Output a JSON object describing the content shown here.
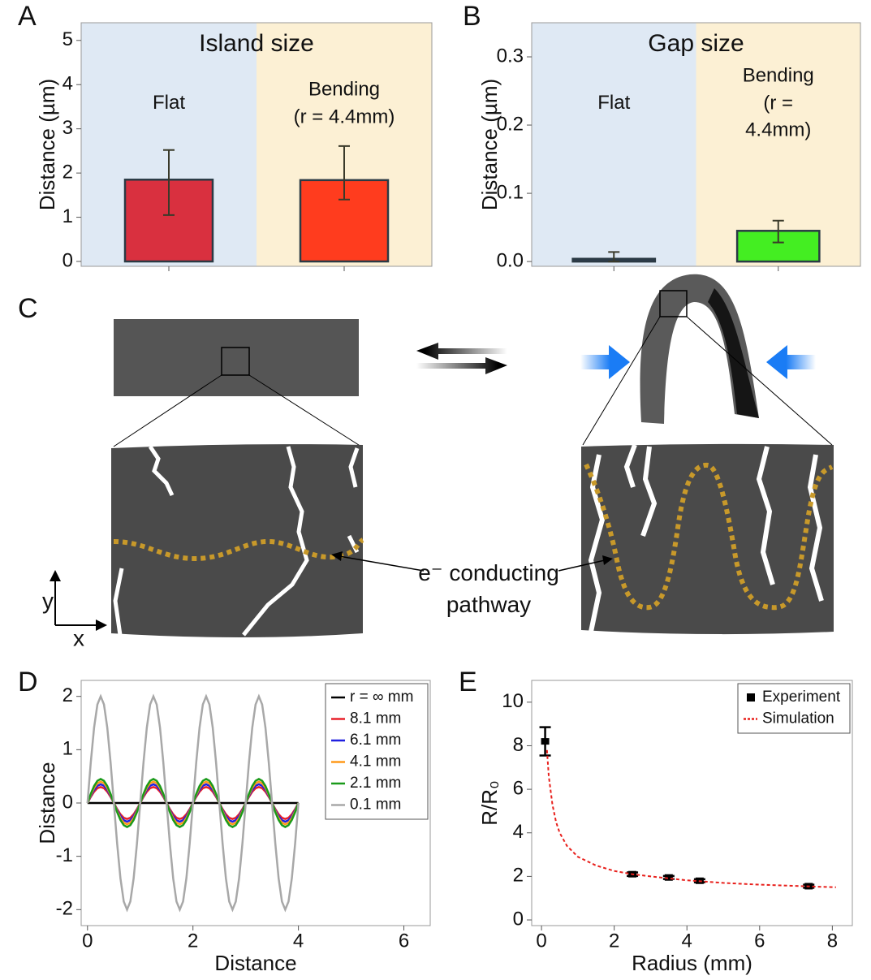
{
  "chart_data": [
    {
      "type": "bar",
      "panel_label": "A",
      "title": "Island size",
      "ylabel": "Distance (µm)",
      "categories": [
        "Flat",
        "Bending\n(r = 4.4mm)"
      ],
      "values": [
        1.85,
        1.84
      ],
      "error_minus": [
        0.8,
        0.44
      ],
      "error_plus": [
        0.67,
        0.77
      ],
      "colors": [
        "#d9303f",
        "#ff3c1e"
      ],
      "background_colors": [
        "#dfe9f4",
        "#fcf0d4"
      ],
      "ylim": [
        -0.11,
        5.4
      ],
      "yticks": [
        0,
        1,
        2,
        3,
        4,
        5
      ]
    },
    {
      "type": "bar",
      "panel_label": "B",
      "title": "Gap size",
      "ylabel": "Distance (µm)",
      "categories": [
        "Flat",
        "Bending\n(r = 4.4mm)"
      ],
      "values": [
        0.004,
        0.045
      ],
      "error_minus": [
        0.004,
        0.017
      ],
      "error_plus": [
        0.01,
        0.015
      ],
      "colors": [
        "#2e3c4c",
        "#44ee22"
      ],
      "background_colors": [
        "#dfe9f4",
        "#fcf0d4"
      ],
      "ylim": [
        -0.007,
        0.35
      ],
      "yticks": [
        {
          "value": 0,
          "label": "0.0"
        },
        0.1,
        0.2,
        0.3
      ]
    },
    {
      "type": "line",
      "panel_label": "D",
      "xlabel": "Distance",
      "ylabel": "Distance",
      "x": [
        0,
        0.0625,
        0.125,
        0.1875,
        0.25,
        0.3125,
        0.375,
        0.4375,
        0.5,
        0.5625,
        0.625,
        0.6875,
        0.75,
        0.8125,
        0.875,
        0.9375,
        1,
        1.0625,
        1.125,
        1.1875,
        1.25,
        1.3125,
        1.375,
        1.4375,
        1.5,
        1.5625,
        1.625,
        1.6875,
        1.75,
        1.8125,
        1.875,
        1.9375,
        2,
        2.0625,
        2.125,
        2.1875,
        2.25,
        2.3125,
        2.375,
        2.4375,
        2.5,
        2.5625,
        2.625,
        2.6875,
        2.75,
        2.8125,
        2.875,
        2.9375,
        3,
        3.0625,
        3.125,
        3.1875,
        3.25,
        3.3125,
        3.375,
        3.4375,
        3.5,
        3.5625,
        3.625,
        3.6875,
        3.75,
        3.8125,
        3.875,
        3.9375,
        4
      ],
      "series": [
        {
          "name": "r = ∞ mm",
          "color": "#000000",
          "values": [
            0,
            0,
            0,
            0,
            0,
            0,
            0,
            0,
            0,
            0,
            0,
            0,
            0,
            0,
            0,
            0,
            0,
            0,
            0,
            0,
            0,
            0,
            0,
            0,
            0,
            0,
            0,
            0,
            0,
            0,
            0,
            0,
            0,
            0,
            0,
            0,
            0,
            0,
            0,
            0,
            0,
            0,
            0,
            0,
            0,
            0,
            0,
            0,
            0,
            0,
            0,
            0,
            0,
            0,
            0,
            0,
            0,
            0,
            0,
            0,
            0,
            0,
            0,
            0,
            0
          ]
        },
        {
          "name": "8.1 mm",
          "color": "#e8202a",
          "values": [
            0,
            0.115,
            0.212,
            0.277,
            0.3,
            0.277,
            0.212,
            0.115,
            0,
            -0.115,
            -0.212,
            -0.277,
            -0.3,
            -0.277,
            -0.212,
            -0.115,
            0,
            0.115,
            0.212,
            0.277,
            0.3,
            0.277,
            0.212,
            0.115,
            0,
            -0.115,
            -0.212,
            -0.277,
            -0.3,
            -0.277,
            -0.212,
            -0.115,
            0,
            0.115,
            0.212,
            0.277,
            0.3,
            0.277,
            0.212,
            0.115,
            0,
            -0.115,
            -0.212,
            -0.277,
            -0.3,
            -0.277,
            -0.212,
            -0.115,
            0,
            0.115,
            0.212,
            0.277,
            0.3,
            0.277,
            0.212,
            0.115,
            0,
            -0.115,
            -0.212,
            -0.277,
            -0.3,
            -0.277,
            -0.212,
            -0.115,
            0
          ]
        },
        {
          "name": "6.1 mm",
          "color": "#2020e0",
          "values": [
            0,
            0.134,
            0.247,
            0.323,
            0.35,
            0.323,
            0.247,
            0.134,
            0,
            -0.134,
            -0.247,
            -0.323,
            -0.35,
            -0.323,
            -0.247,
            -0.134,
            0,
            0.134,
            0.247,
            0.323,
            0.35,
            0.323,
            0.247,
            0.134,
            0,
            -0.134,
            -0.247,
            -0.323,
            -0.35,
            -0.323,
            -0.247,
            -0.134,
            0,
            0.134,
            0.247,
            0.323,
            0.35,
            0.323,
            0.247,
            0.134,
            0,
            -0.134,
            -0.247,
            -0.323,
            -0.35,
            -0.323,
            -0.247,
            -0.134,
            0,
            0.134,
            0.247,
            0.323,
            0.35,
            0.323,
            0.247,
            0.134,
            0,
            -0.134,
            -0.247,
            -0.323,
            -0.35,
            -0.323,
            -0.247,
            -0.134,
            0
          ]
        },
        {
          "name": "4.1 mm",
          "color": "#ff9a1a",
          "values": [
            0,
            0.153,
            0.283,
            0.37,
            0.4,
            0.37,
            0.283,
            0.153,
            0,
            -0.153,
            -0.283,
            -0.37,
            -0.4,
            -0.37,
            -0.283,
            -0.153,
            0,
            0.153,
            0.283,
            0.37,
            0.4,
            0.37,
            0.283,
            0.153,
            0,
            -0.153,
            -0.283,
            -0.37,
            -0.4,
            -0.37,
            -0.283,
            -0.153,
            0,
            0.153,
            0.283,
            0.37,
            0.4,
            0.37,
            0.283,
            0.153,
            0,
            -0.153,
            -0.283,
            -0.37,
            -0.4,
            -0.37,
            -0.283,
            -0.153,
            0,
            0.153,
            0.283,
            0.37,
            0.4,
            0.37,
            0.283,
            0.153,
            0,
            -0.153,
            -0.283,
            -0.37,
            -0.4,
            -0.37,
            -0.283,
            -0.153,
            0
          ]
        },
        {
          "name": "2.1 mm",
          "color": "#1a9a1a",
          "values": [
            0,
            0.172,
            0.318,
            0.416,
            0.45,
            0.416,
            0.318,
            0.172,
            0,
            -0.172,
            -0.318,
            -0.416,
            -0.45,
            -0.416,
            -0.318,
            -0.172,
            0,
            0.172,
            0.318,
            0.416,
            0.45,
            0.416,
            0.318,
            0.172,
            0,
            -0.172,
            -0.318,
            -0.416,
            -0.45,
            -0.416,
            -0.318,
            -0.172,
            0,
            0.172,
            0.318,
            0.416,
            0.45,
            0.416,
            0.318,
            0.172,
            0,
            -0.172,
            -0.318,
            -0.416,
            -0.45,
            -0.416,
            -0.318,
            -0.172,
            0,
            0.172,
            0.318,
            0.416,
            0.45,
            0.416,
            0.318,
            0.172,
            0,
            -0.172,
            -0.318,
            -0.416,
            -0.45,
            -0.416,
            -0.318,
            -0.172,
            0
          ]
        },
        {
          "name": "0.1 mm",
          "color": "#a8a8a8",
          "values": [
            0,
            0.765,
            1.414,
            1.848,
            2,
            1.848,
            1.414,
            0.765,
            0,
            -0.765,
            -1.414,
            -1.848,
            -2,
            -1.848,
            -1.414,
            -0.765,
            0,
            0.765,
            1.414,
            1.848,
            2,
            1.848,
            1.414,
            0.765,
            0,
            -0.765,
            -1.414,
            -1.848,
            -2,
            -1.848,
            -1.414,
            -0.765,
            0,
            0.765,
            1.414,
            1.848,
            2,
            1.848,
            1.414,
            0.765,
            0,
            -0.765,
            -1.414,
            -1.848,
            -2,
            -1.848,
            -1.414,
            -0.765,
            0,
            0.765,
            1.414,
            1.848,
            2,
            1.848,
            1.414,
            0.765,
            0,
            -0.765,
            -1.414,
            -1.848,
            -2,
            -1.848,
            -1.414,
            -0.765,
            0
          ]
        }
      ],
      "xlim": [
        -0.12,
        6.5
      ],
      "ylim": [
        -2.3,
        2.3
      ],
      "xticks": [
        0,
        2,
        4,
        6
      ],
      "yticks": [
        -2,
        -1,
        0,
        1,
        2
      ],
      "legend": "upper right"
    },
    {
      "type": "scatter",
      "panel_label": "E",
      "xlabel": "Radius (mm)",
      "ylabel": "R/R₀",
      "series": [
        {
          "name": "Experiment",
          "color": "#000000",
          "x": [
            0.1,
            2.5,
            3.5,
            4.35,
            7.35
          ],
          "values": [
            8.2,
            2.1,
            1.95,
            1.8,
            1.55
          ],
          "errors": [
            0.65,
            0.08,
            0.07,
            0.07,
            0.07
          ]
        },
        {
          "name": "Simulation",
          "type": "line",
          "dashed": true,
          "color": "#e8201c",
          "x": [
            0.15,
            0.2,
            0.3,
            0.4,
            0.5,
            0.7,
            1,
            1.5,
            2,
            2.5,
            3,
            4,
            5,
            6,
            7,
            8.1
          ],
          "values": [
            7.8,
            6.6,
            5.3,
            4.5,
            4.0,
            3.4,
            2.9,
            2.5,
            2.25,
            2.1,
            2.0,
            1.82,
            1.7,
            1.62,
            1.56,
            1.5
          ]
        }
      ],
      "xlim": [
        -0.27,
        8.55
      ],
      "ylim": [
        -0.26,
        11
      ],
      "xticks": [
        0,
        2,
        4,
        6,
        8
      ],
      "yticks": [
        0,
        2,
        4,
        6,
        8,
        10
      ],
      "legend": "upper right"
    }
  ],
  "diagram": {
    "panel_label": "C",
    "axis_y": "y",
    "axis_x": "x",
    "annotation": "e⁻ conducting\npathway"
  }
}
